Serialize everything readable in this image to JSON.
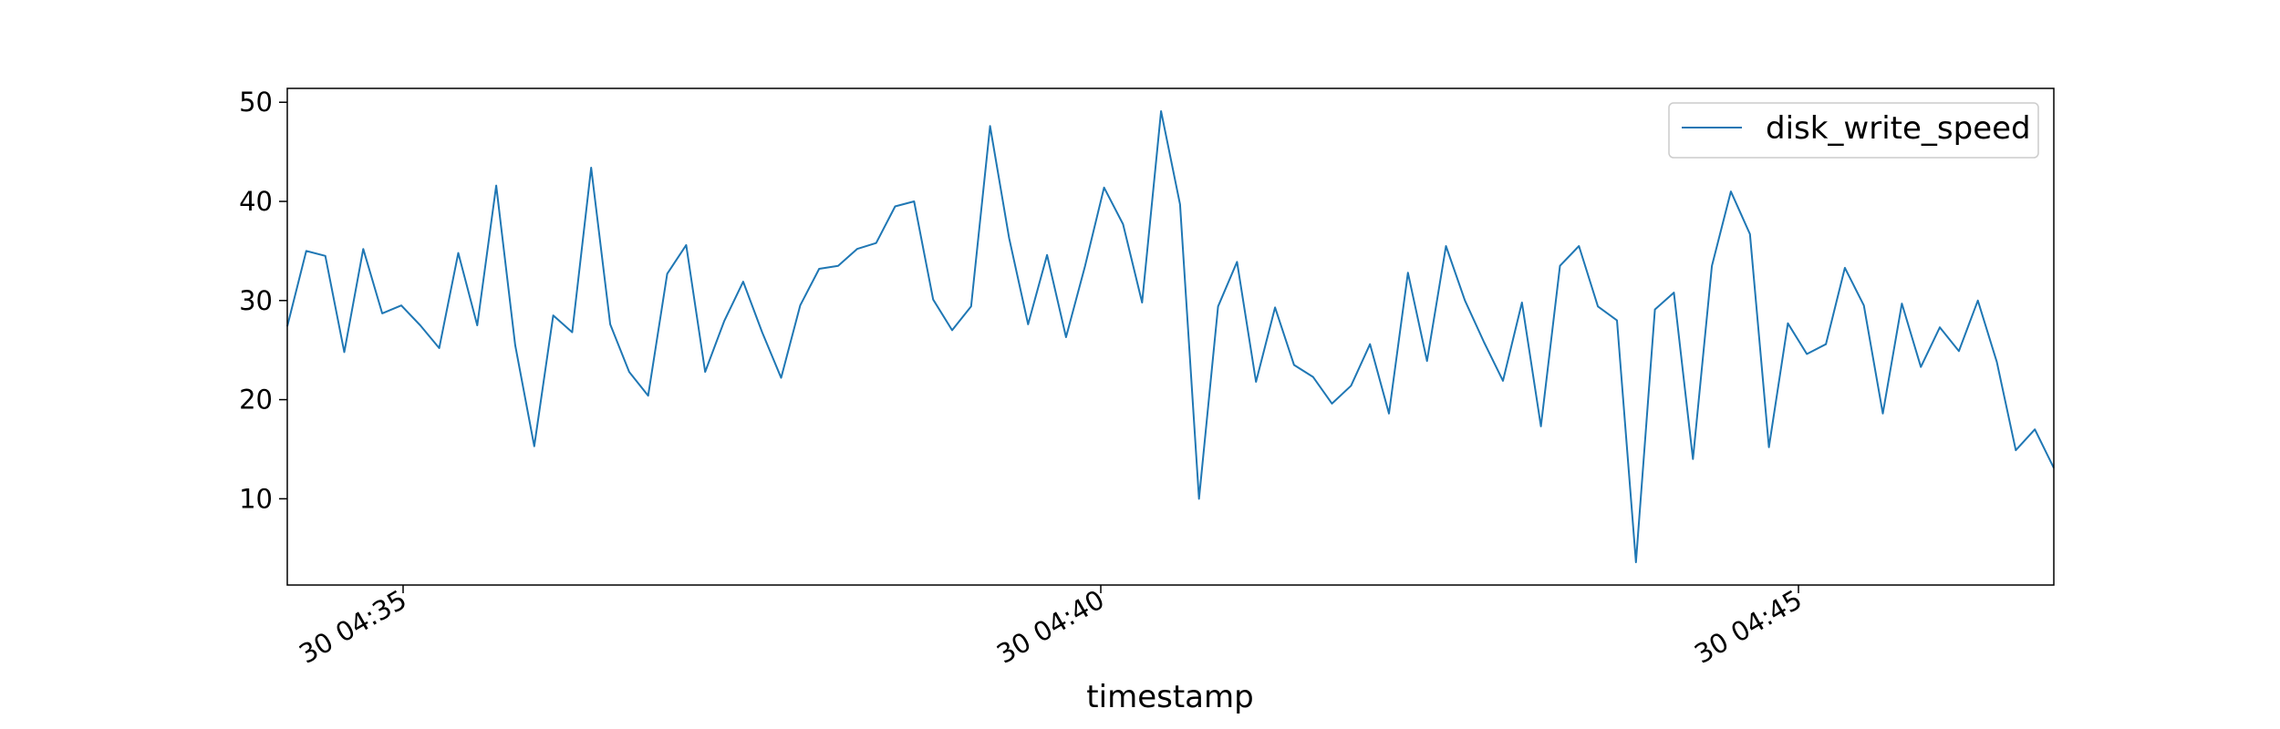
{
  "chart_data": {
    "type": "line",
    "title": "",
    "xlabel": "timestamp",
    "ylabel": "",
    "x_tick_labels": [
      "30 04:35",
      "30 04:40",
      "30 04:45"
    ],
    "x_ticks_minutes": [
      35,
      40,
      45
    ],
    "y_ticks": [
      10,
      20,
      30,
      40,
      50
    ],
    "xlim_minutes": [
      34.17,
      46.83
    ],
    "ylim": [
      1.3,
      51.4
    ],
    "legend_position": "upper right",
    "grid": false,
    "series": [
      {
        "name": "disk_write_speed",
        "color": "#1f77b4",
        "values": [
          27.4,
          35.0,
          34.5,
          24.8,
          35.2,
          28.7,
          29.5,
          27.5,
          25.2,
          34.8,
          27.5,
          41.6,
          25.5,
          15.3,
          28.5,
          26.8,
          43.4,
          27.6,
          22.8,
          20.4,
          32.7,
          35.6,
          22.8,
          27.9,
          31.9,
          26.8,
          22.2,
          29.5,
          33.2,
          33.5,
          35.2,
          35.8,
          39.5,
          40.0,
          30.1,
          27.0,
          29.4,
          47.6,
          36.3,
          27.6,
          34.6,
          26.3,
          33.5,
          41.4,
          37.7,
          29.8,
          49.1,
          39.7,
          10.0,
          29.4,
          33.9,
          21.8,
          29.3,
          23.5,
          22.3,
          19.6,
          21.4,
          25.6,
          18.6,
          32.8,
          23.9,
          35.5,
          30.0,
          25.8,
          21.9,
          29.8,
          17.3,
          33.5,
          35.5,
          29.4,
          28.0,
          3.6,
          29.1,
          30.8,
          14.0,
          33.5,
          41.0,
          36.7,
          15.2,
          27.7,
          24.6,
          25.6,
          33.3,
          29.5,
          18.6,
          29.7,
          23.3,
          27.3,
          24.9,
          30.0,
          23.8,
          14.9,
          17.0,
          13.1
        ]
      }
    ]
  }
}
